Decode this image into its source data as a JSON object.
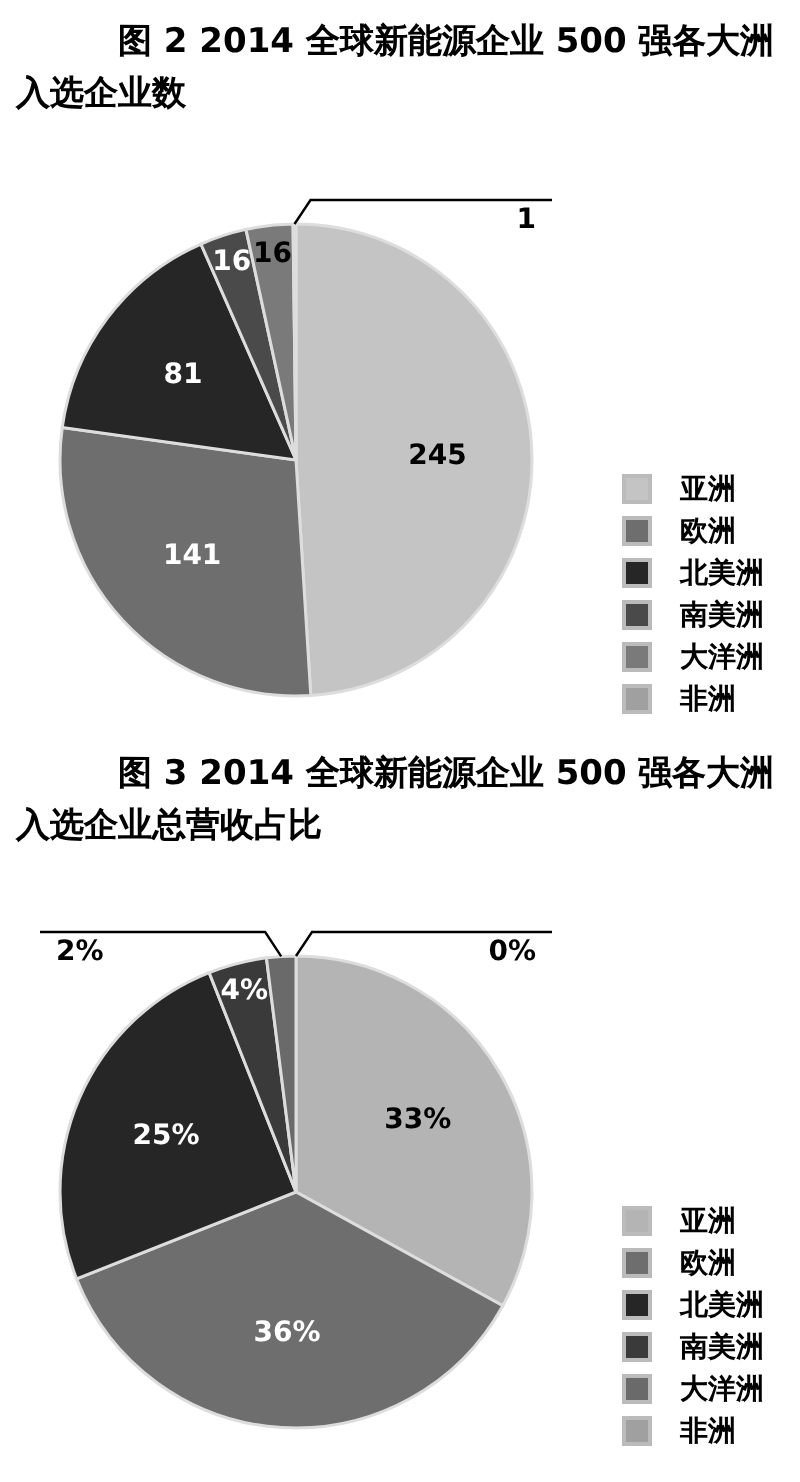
{
  "chart_data": [
    {
      "type": "pie",
      "title": "图 2  2014 全球新能源企业 500 强各大洲入选企业数",
      "categories": [
        "亚洲",
        "欧洲",
        "北美洲",
        "南美洲",
        "大洋洲",
        "非洲"
      ],
      "values": [
        245,
        141,
        81,
        16,
        16,
        1
      ],
      "colors": [
        "#c4c4c4",
        "#6e6e6e",
        "#262626",
        "#4a4a4a",
        "#7a7a7a",
        "#a0a0a0"
      ],
      "data_labels": true,
      "legend": "right"
    },
    {
      "type": "pie",
      "title": "图 3  2014 全球新能源企业 500 强各大洲入选企业总营收占比",
      "categories": [
        "亚洲",
        "欧洲",
        "北美洲",
        "南美洲",
        "大洋洲",
        "非洲"
      ],
      "values": [
        33,
        36,
        25,
        4,
        2,
        0
      ],
      "value_labels": [
        "33%",
        "36%",
        "25%",
        "4%",
        "2%",
        "0%"
      ],
      "colors": [
        "#b4b4b4",
        "#6e6e6e",
        "#262626",
        "#3a3a3a",
        "#6a6a6a",
        "#a0a0a0"
      ],
      "legend": "right"
    }
  ]
}
